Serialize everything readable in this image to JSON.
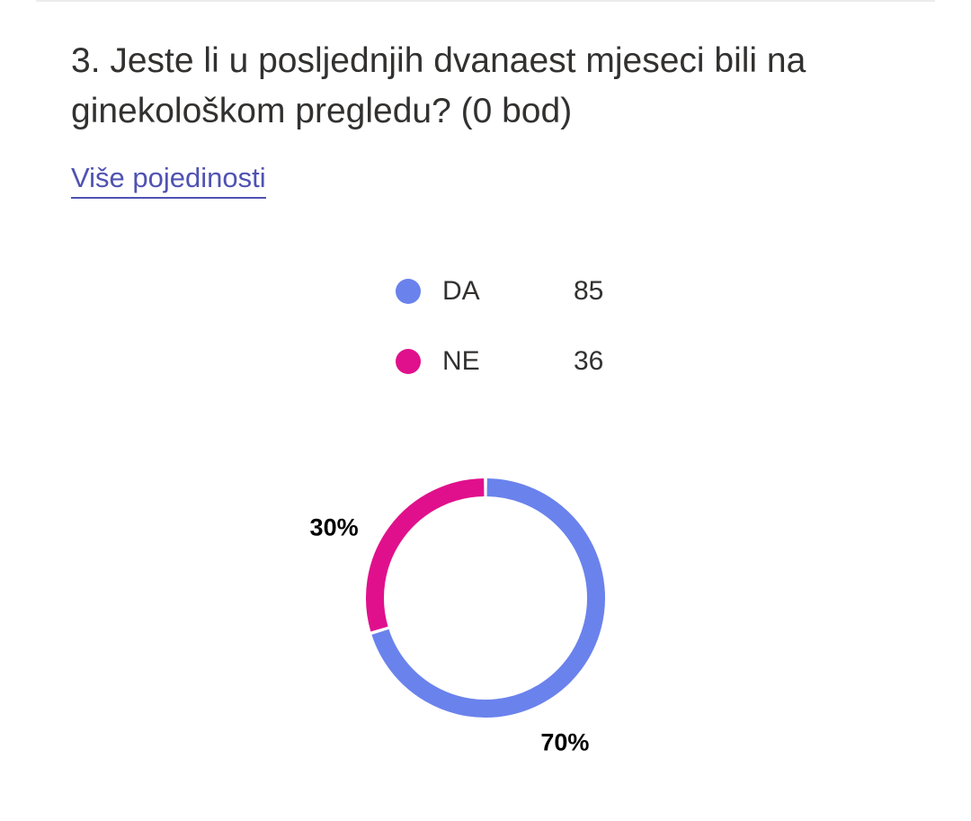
{
  "question": {
    "title": "3. Jeste li u posljednjih dvanaest mjeseci bili na ginekološkom pregledu? (0 bod)",
    "details_link": "Više pojedinosti"
  },
  "legend": [
    {
      "label": "DA",
      "value": "85",
      "color": "#6a82ec"
    },
    {
      "label": "NE",
      "value": "36",
      "color": "#e0108c"
    }
  ],
  "chart_data": {
    "type": "pie",
    "donut": true,
    "categories": [
      "DA",
      "NE"
    ],
    "values": [
      85,
      36
    ],
    "percent_labels": [
      "70%",
      "30%"
    ],
    "colors": [
      "#6a82ec",
      "#e0108c"
    ]
  }
}
